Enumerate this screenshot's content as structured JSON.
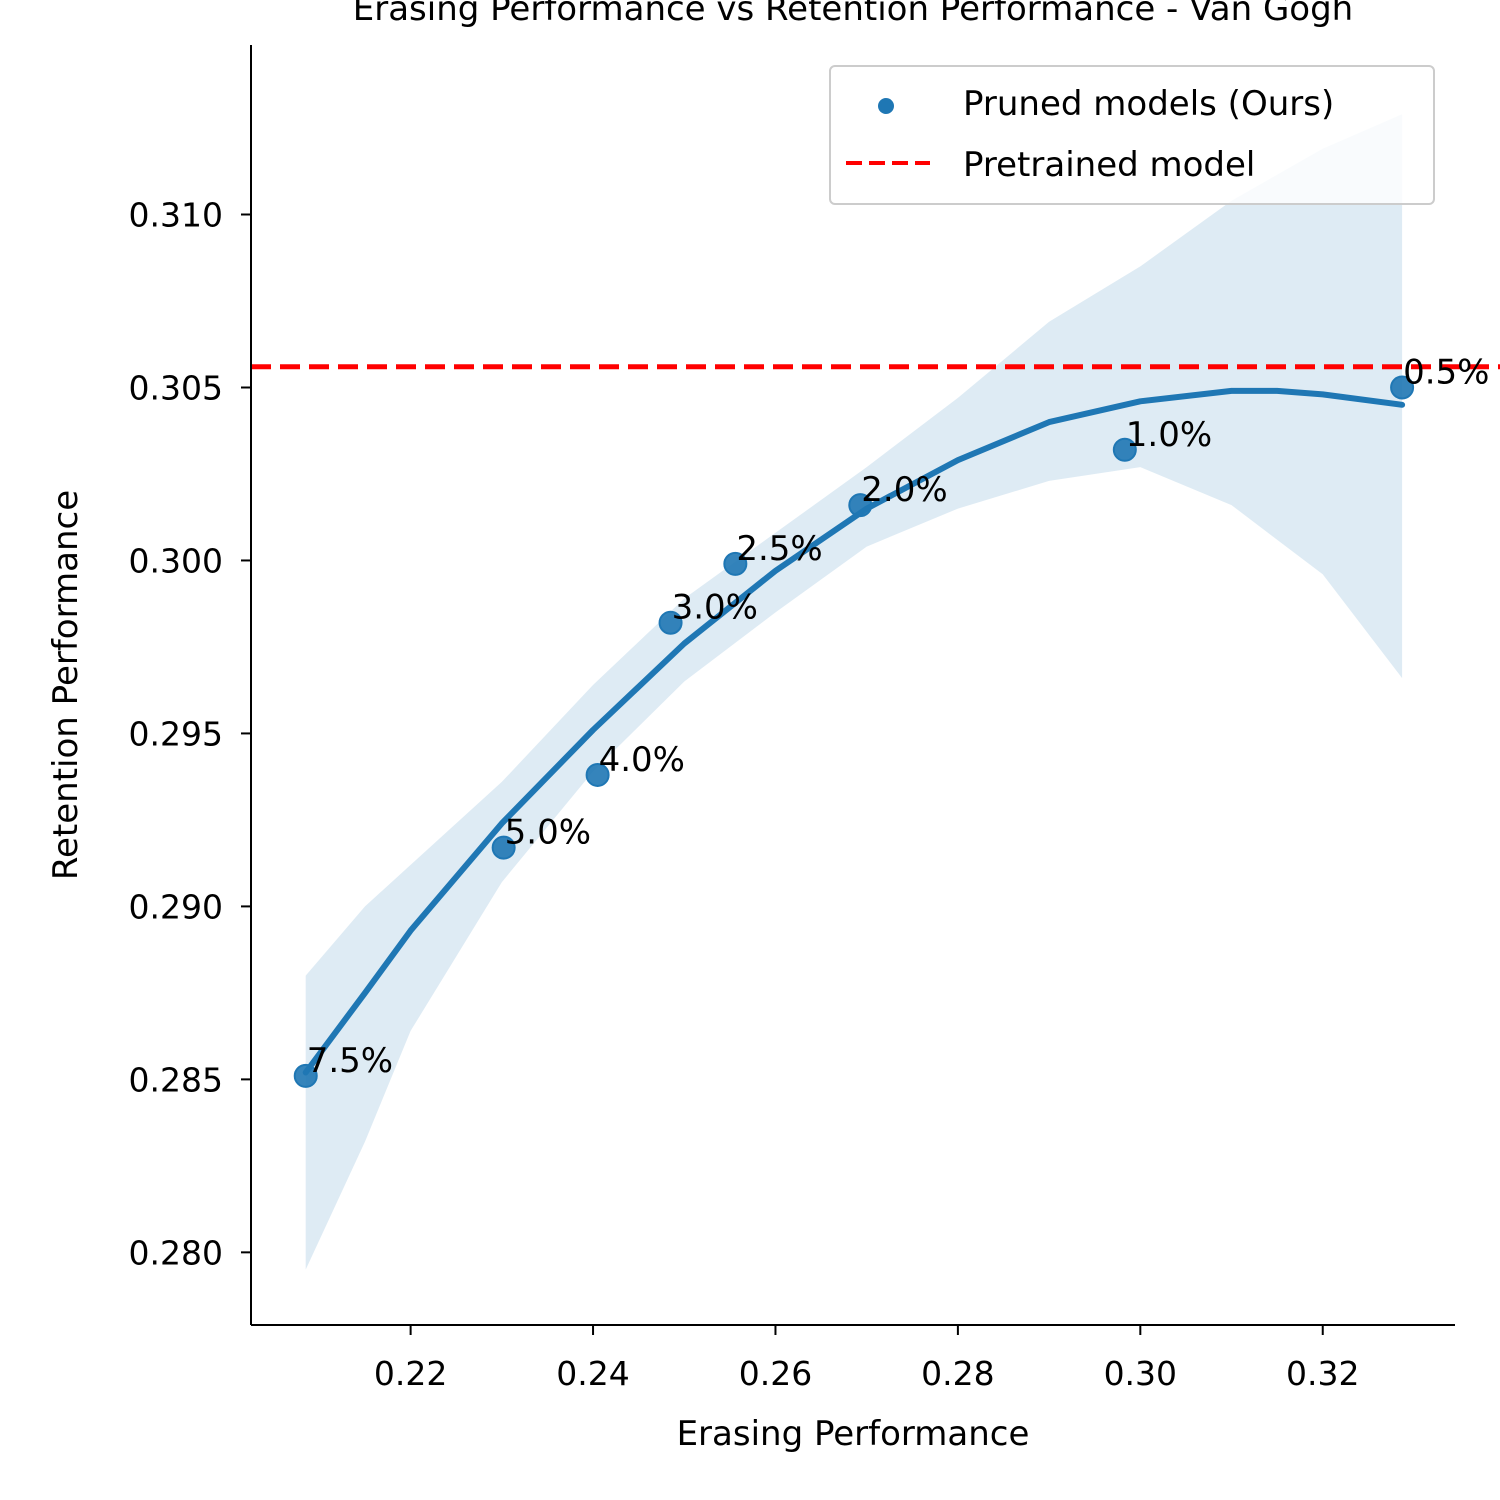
{
  "chart_data": {
    "type": "scatter",
    "title": "Erasing Performance vs Retention Performance - Van Gogh",
    "xlabel": "Erasing Performance",
    "ylabel": "Retention Performance",
    "xlim": [
      0.2025,
      0.3345
    ],
    "ylim": [
      0.2779,
      0.3149
    ],
    "xticks": [
      0.22,
      0.24,
      0.26,
      0.28,
      0.3,
      0.32
    ],
    "xtick_labels": [
      "0.22",
      "0.24",
      "0.26",
      "0.28",
      "0.30",
      "0.32"
    ],
    "yticks": [
      0.28,
      0.285,
      0.29,
      0.295,
      0.3,
      0.305,
      0.31
    ],
    "ytick_labels": [
      "0.280",
      "0.285",
      "0.290",
      "0.295",
      "0.300",
      "0.305",
      "0.310"
    ],
    "grid": false,
    "legend_position": "top-right",
    "series": [
      {
        "name": "Pruned models (Ours)",
        "color": "#1f77b4",
        "points": [
          {
            "x": 0.2085,
            "y": 0.2851,
            "label": "7.5%"
          },
          {
            "x": 0.2302,
            "y": 0.2917,
            "label": "5.0%"
          },
          {
            "x": 0.2405,
            "y": 0.2938,
            "label": "4.0%"
          },
          {
            "x": 0.2485,
            "y": 0.2982,
            "label": "3.0%"
          },
          {
            "x": 0.2556,
            "y": 0.2999,
            "label": "2.5%"
          },
          {
            "x": 0.2693,
            "y": 0.3016,
            "label": "2.0%"
          },
          {
            "x": 0.2983,
            "y": 0.3032,
            "label": "1.0%"
          },
          {
            "x": 0.3287,
            "y": 0.305,
            "label": "0.5%"
          }
        ]
      },
      {
        "name": "Pretrained model",
        "type": "hline",
        "color": "#ff0000",
        "y": 0.3056
      }
    ],
    "fit": {
      "type": "quadratic",
      "color": "#1f77b4",
      "curve": [
        {
          "x": 0.2085,
          "y": 0.2852
        },
        {
          "x": 0.215,
          "y": 0.2875
        },
        {
          "x": 0.22,
          "y": 0.2893
        },
        {
          "x": 0.23,
          "y": 0.2924
        },
        {
          "x": 0.24,
          "y": 0.2951
        },
        {
          "x": 0.25,
          "y": 0.2976
        },
        {
          "x": 0.26,
          "y": 0.2997
        },
        {
          "x": 0.27,
          "y": 0.3015
        },
        {
          "x": 0.28,
          "y": 0.3029
        },
        {
          "x": 0.29,
          "y": 0.304
        },
        {
          "x": 0.3,
          "y": 0.3046
        },
        {
          "x": 0.31,
          "y": 0.3049
        },
        {
          "x": 0.315,
          "y": 0.3049
        },
        {
          "x": 0.32,
          "y": 0.3048
        },
        {
          "x": 0.3287,
          "y": 0.3045
        }
      ],
      "ci_upper": [
        {
          "x": 0.2085,
          "y": 0.288
        },
        {
          "x": 0.215,
          "y": 0.29
        },
        {
          "x": 0.22,
          "y": 0.2912
        },
        {
          "x": 0.23,
          "y": 0.2936
        },
        {
          "x": 0.24,
          "y": 0.2964
        },
        {
          "x": 0.25,
          "y": 0.2989
        },
        {
          "x": 0.26,
          "y": 0.3008
        },
        {
          "x": 0.27,
          "y": 0.3027
        },
        {
          "x": 0.28,
          "y": 0.3047
        },
        {
          "x": 0.29,
          "y": 0.3069
        },
        {
          "x": 0.3,
          "y": 0.3085
        },
        {
          "x": 0.31,
          "y": 0.3104
        },
        {
          "x": 0.32,
          "y": 0.3119
        },
        {
          "x": 0.3287,
          "y": 0.3129
        }
      ],
      "ci_lower": [
        {
          "x": 0.2085,
          "y": 0.2795
        },
        {
          "x": 0.215,
          "y": 0.2832
        },
        {
          "x": 0.22,
          "y": 0.2864
        },
        {
          "x": 0.23,
          "y": 0.2907
        },
        {
          "x": 0.24,
          "y": 0.2939
        },
        {
          "x": 0.25,
          "y": 0.2965
        },
        {
          "x": 0.26,
          "y": 0.2985
        },
        {
          "x": 0.27,
          "y": 0.3004
        },
        {
          "x": 0.28,
          "y": 0.3015
        },
        {
          "x": 0.29,
          "y": 0.3023
        },
        {
          "x": 0.3,
          "y": 0.3027
        },
        {
          "x": 0.31,
          "y": 0.3016
        },
        {
          "x": 0.32,
          "y": 0.2996
        },
        {
          "x": 0.3287,
          "y": 0.2966
        }
      ]
    }
  }
}
